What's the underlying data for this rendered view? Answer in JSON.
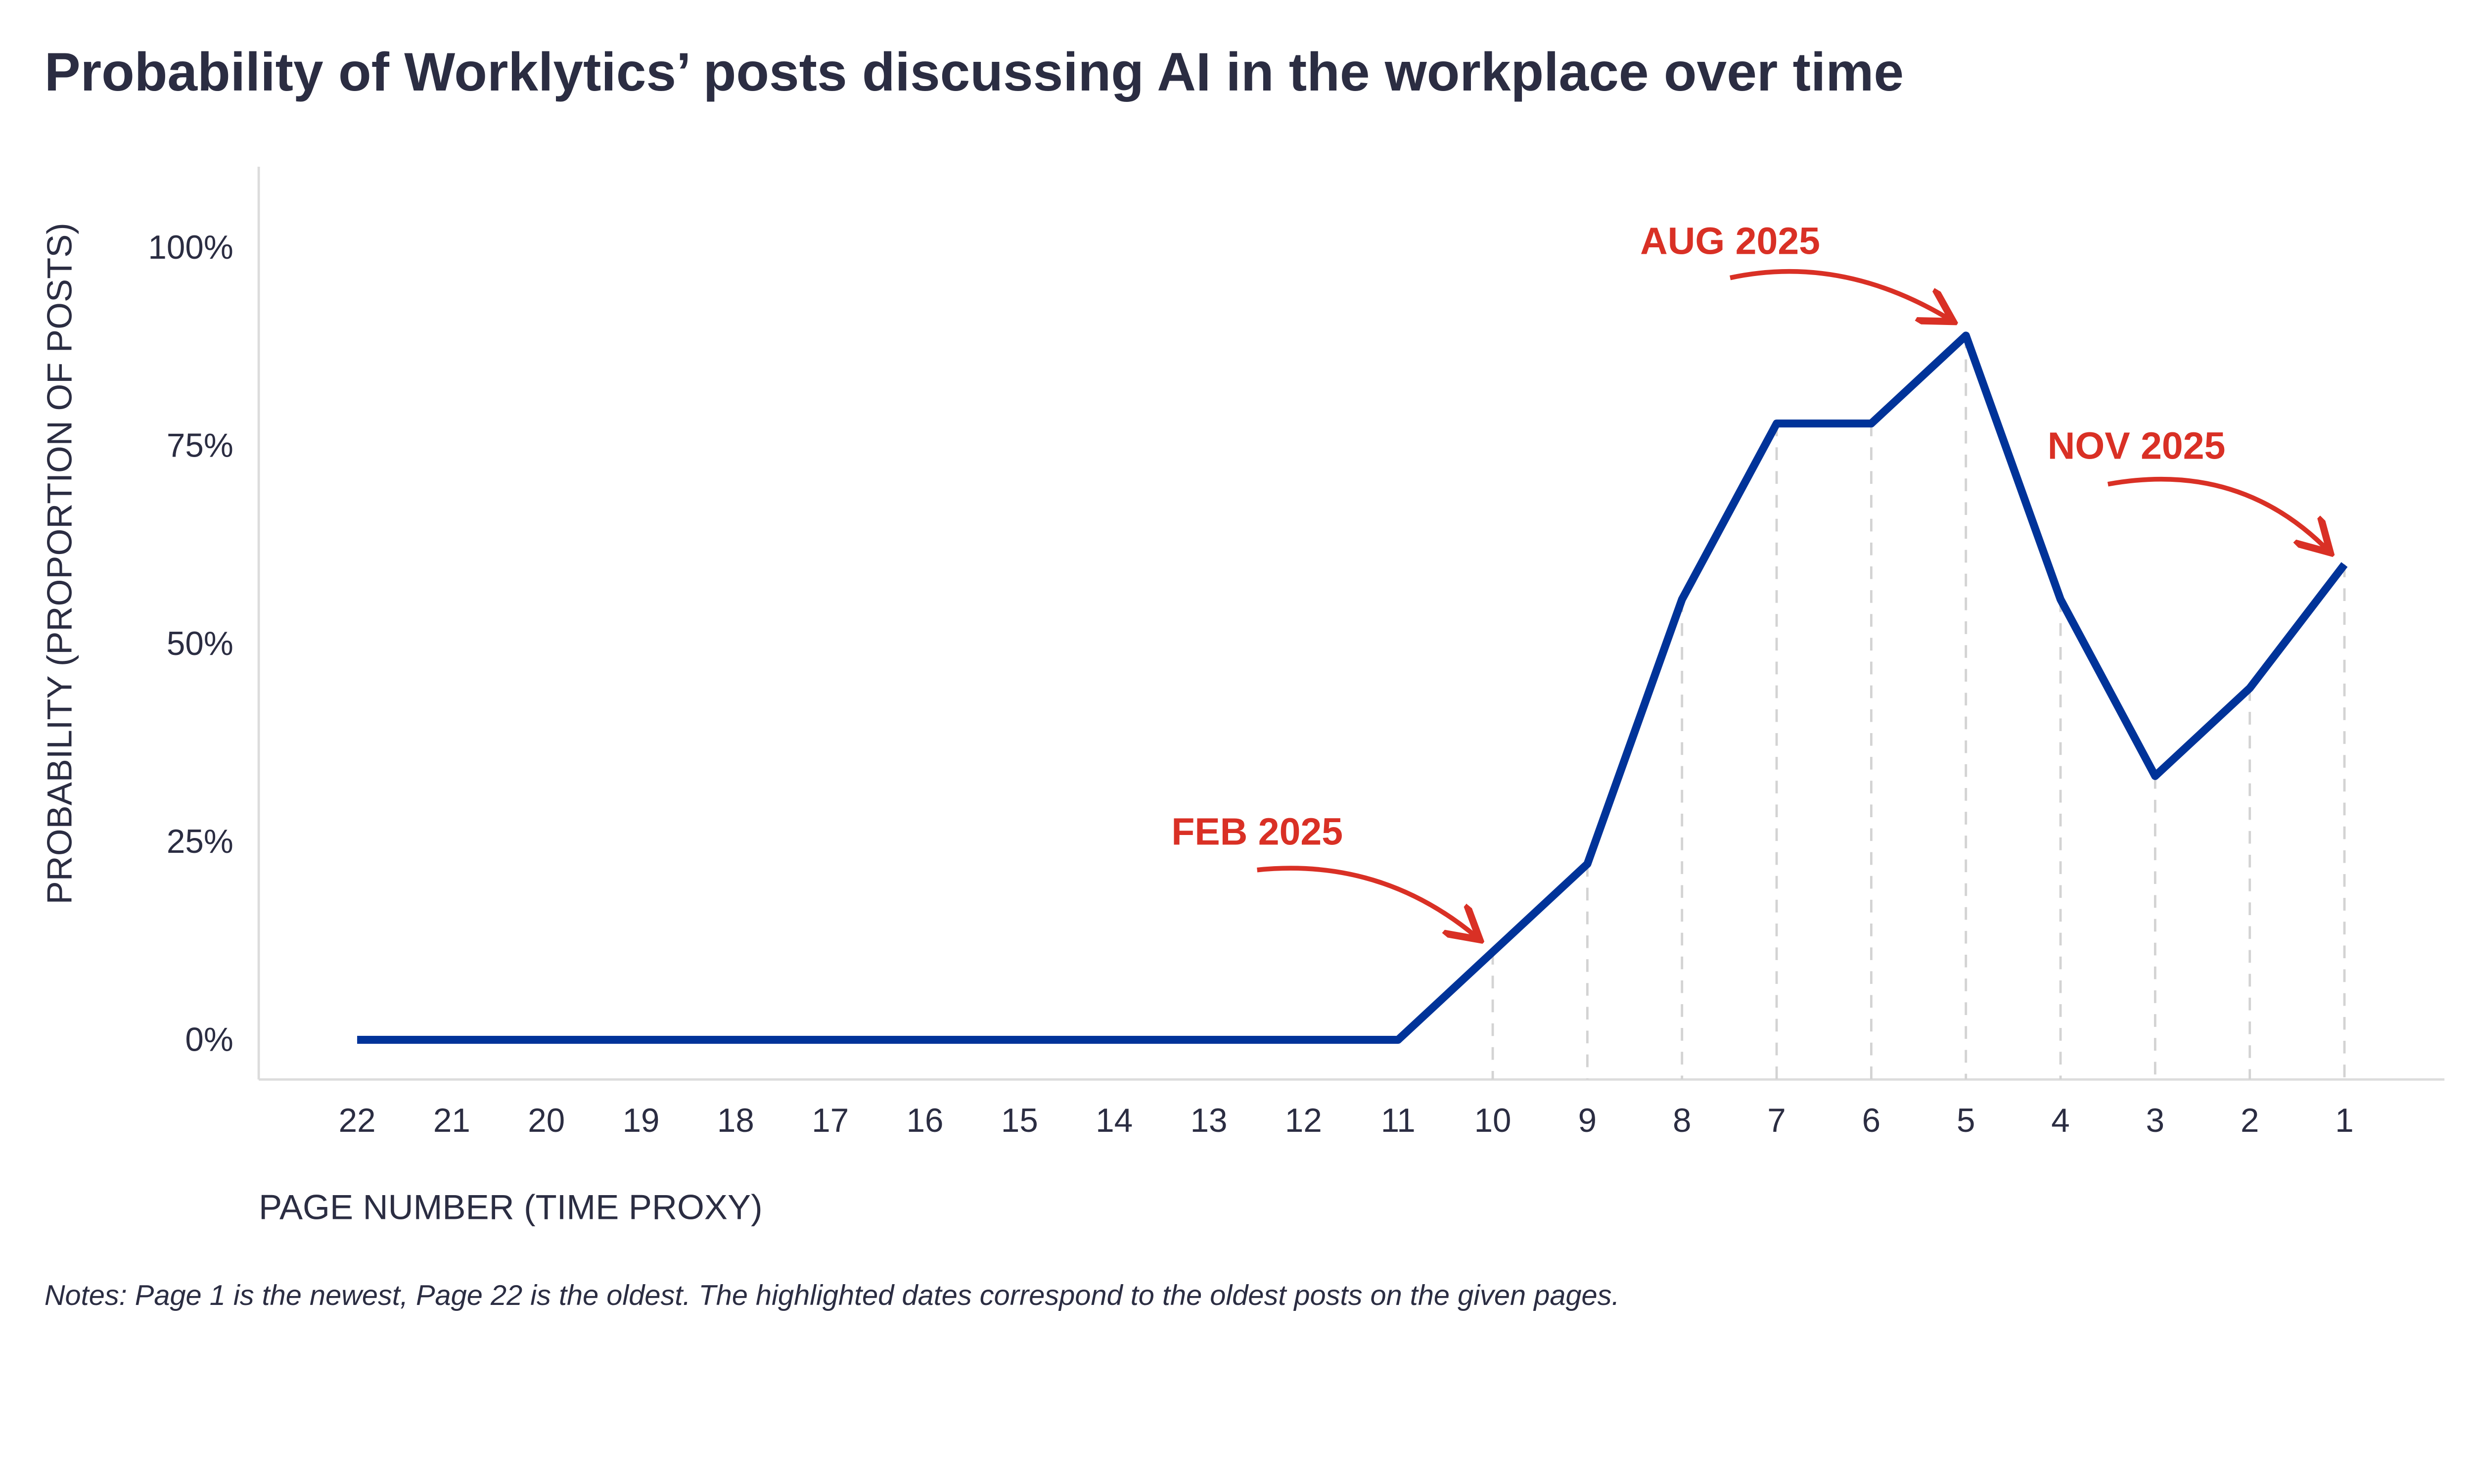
{
  "chart_data": {
    "type": "line",
    "title": "Probability of Worklytics’ posts discussing AI in the workplace over time",
    "xlabel": "PAGE NUMBER (TIME PROXY)",
    "ylabel": "PROBABILITY (PROPORTION OF POSTS)",
    "notes": "Notes: Page 1 is the newest, Page 22 is the oldest. The highlighted dates correspond to the oldest posts on the given pages.",
    "x": [
      22,
      21,
      20,
      19,
      18,
      17,
      16,
      15,
      14,
      13,
      12,
      11,
      10,
      9,
      8,
      7,
      6,
      5,
      4,
      3,
      2,
      1
    ],
    "x_tick_labels": [
      "22",
      "21",
      "20",
      "19",
      "18",
      "17",
      "16",
      "15",
      "14",
      "13",
      "12",
      "11",
      "10",
      "9",
      "8",
      "7",
      "6",
      "5",
      "4",
      "3",
      "2",
      "1"
    ],
    "series": [
      {
        "name": "Probability",
        "color": "#003399",
        "values": [
          0,
          0,
          0,
          0,
          0,
          0,
          0,
          0,
          0,
          0,
          0,
          0,
          0.111,
          0.222,
          0.556,
          0.778,
          0.778,
          0.889,
          0.556,
          0.333,
          0.444,
          0.6
        ]
      }
    ],
    "ylim": [
      -0.05,
      1.1
    ],
    "y_ticks": [
      0,
      0.25,
      0.5,
      0.75,
      1.0
    ],
    "y_tick_labels": [
      "0%",
      "25%",
      "50%",
      "75%",
      "100%"
    ],
    "dashed_drop_lines_from_page": 10,
    "annotations": [
      {
        "text": "FEB 2025",
        "page": 10,
        "color": "#d93025"
      },
      {
        "text": "AUG 2025",
        "page": 5,
        "color": "#d93025"
      },
      {
        "text": "NOV 2025",
        "page": 1,
        "color": "#d93025"
      }
    ],
    "grid": false
  }
}
